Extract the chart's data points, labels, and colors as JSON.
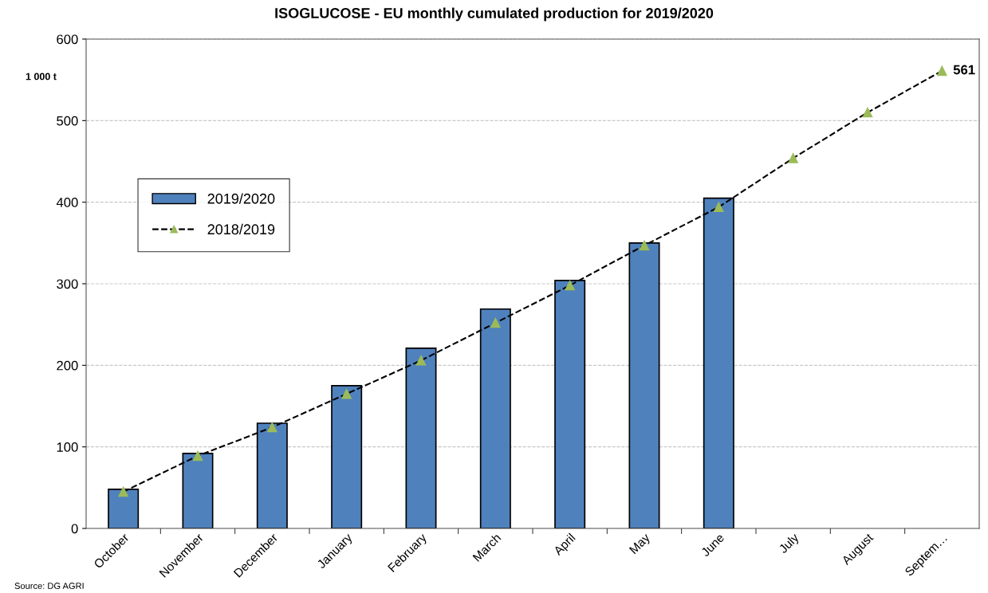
{
  "chart_data": {
    "type": "bar",
    "title": "ISOGLUCOSE - EU monthly cumulated production for 2019/2020",
    "ylabel": "1 000 t",
    "categories": [
      "October",
      "November",
      "December",
      "January",
      "February",
      "March",
      "April",
      "May",
      "June",
      "July",
      "August",
      "Septem…"
    ],
    "series": [
      {
        "name": "2019/2020",
        "color": "#4f81bd",
        "values": [
          48,
          92,
          129,
          175,
          221,
          269,
          304,
          350,
          405,
          null,
          null,
          null
        ]
      },
      {
        "name": "2018/2019",
        "type": "line",
        "color": "#9bbb59",
        "marker": "triangle",
        "line_style": "dashed",
        "values": [
          45,
          89,
          124,
          165,
          206,
          252,
          298,
          347,
          394,
          454,
          510,
          561
        ],
        "value_labels": [
          null,
          null,
          null,
          null,
          null,
          null,
          null,
          null,
          null,
          null,
          null,
          "561"
        ]
      }
    ],
    "ylim": [
      0,
      600
    ],
    "yticks": [
      0,
      100,
      200,
      300,
      400,
      500,
      600
    ],
    "grid": "y",
    "legend": "center left",
    "annotations": [
      "Source: DG AGRI"
    ]
  }
}
